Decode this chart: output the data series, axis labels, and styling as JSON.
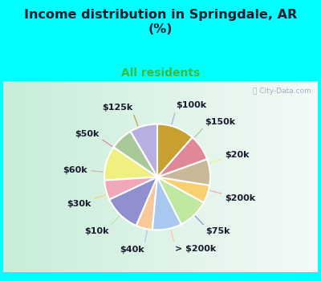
{
  "title": "Income distribution in Springdale, AR\n(%)",
  "subtitle": "All residents",
  "title_color": "#1a1a2e",
  "subtitle_color": "#3dba3d",
  "bg_cyan": "#00ffff",
  "chart_bg_color": "#c8ede0",
  "watermark": "ⓘ City-Data.com",
  "labels": [
    "$100k",
    "$150k",
    "$20k",
    "$200k",
    "$75k",
    "> $200k",
    "$40k",
    "$10k",
    "$30k",
    "$60k",
    "$50k",
    "$125k"
  ],
  "values": [
    8.5,
    7.0,
    10.5,
    6.0,
    11.5,
    5.0,
    9.0,
    9.5,
    5.5,
    8.0,
    8.0,
    11.5
  ],
  "colors": [
    "#b8aee0",
    "#a8c898",
    "#f0f080",
    "#f0a8b8",
    "#9090d0",
    "#f8c898",
    "#a8c8f0",
    "#c0e8a0",
    "#f8d070",
    "#c8b898",
    "#e08898",
    "#c8a030"
  ],
  "label_fontsize": 8,
  "startangle": 90,
  "wedge_linewidth": 1.5,
  "wedge_edgecolor": "white"
}
